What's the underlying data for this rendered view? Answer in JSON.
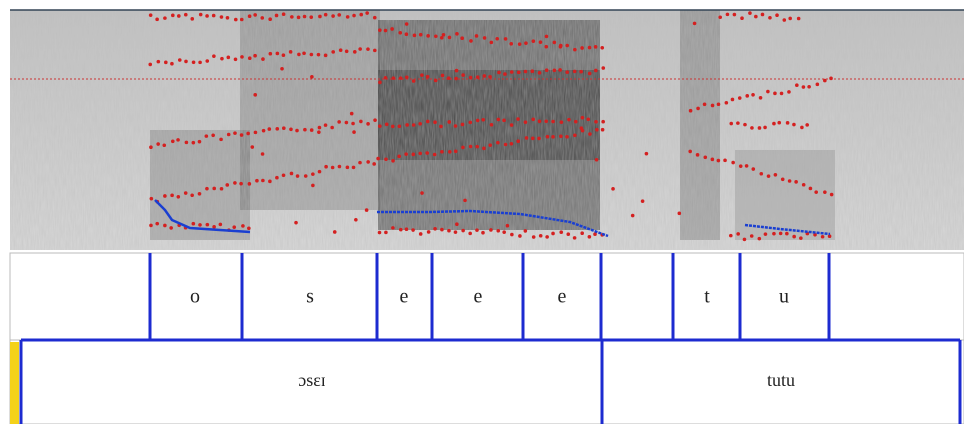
{
  "tiers": [
    {
      "intervals": [
        "o",
        "s",
        "e",
        "e",
        "e",
        "t",
        "u"
      ]
    },
    {
      "intervals": [
        "ɔsɛɪ",
        "tutu"
      ]
    }
  ]
}
